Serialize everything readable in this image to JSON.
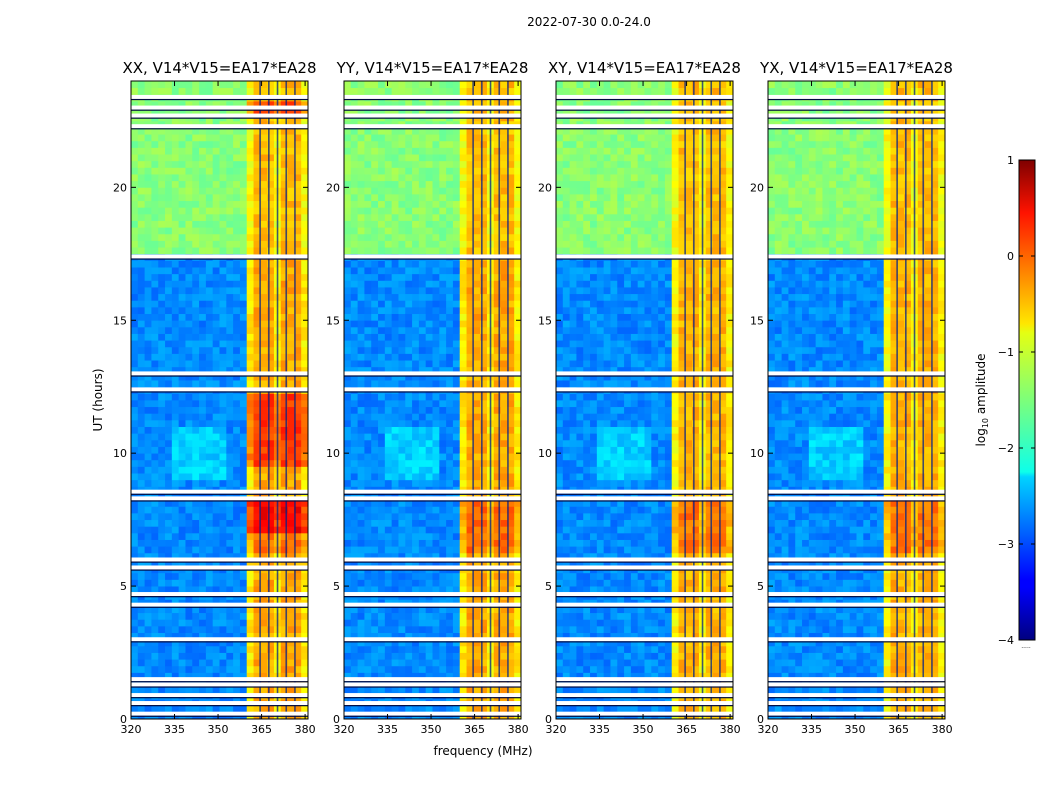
{
  "figure": {
    "suptitle": "2022-07-30 0.0-24.0",
    "xlabel": "frequency (MHz)",
    "ylabel": "UT (hours)"
  },
  "chart_data": {
    "type": "heatmap",
    "x_range_mhz": [
      320,
      381
    ],
    "y_range_hours": [
      0,
      24
    ],
    "x_ticks": [
      320,
      335,
      350,
      365,
      380
    ],
    "y_ticks": [
      0,
      5,
      10,
      15,
      20
    ],
    "panels": [
      {
        "title": "XX, V14*V15=EA17*EA28",
        "ylabel_shown": true
      },
      {
        "title": "YY, V14*V15=EA17*EA28",
        "ylabel_shown": false
      },
      {
        "title": "XY, V14*V15=EA17*EA28",
        "ylabel_shown": false
      },
      {
        "title": "YX, V14*V15=EA17*EA28",
        "ylabel_shown": false
      }
    ],
    "rfi_band_mhz": [
      361,
      380
    ],
    "rfi_bright_columns_mhz": [
      363,
      366,
      369,
      372,
      375,
      378
    ],
    "quiet_block_hours": [
      17.6,
      24
    ],
    "flagged_rows_hours": [
      0.2,
      0.6,
      0.9,
      1.3,
      1.5,
      3.0,
      4.3,
      4.7,
      5.7,
      6.0,
      8.3,
      8.55,
      12.4,
      13.0,
      17.4,
      22.3,
      22.7,
      23.0,
      23.4
    ],
    "colorbar": {
      "label": "log",
      "label_sub": "10",
      "label_suffix": " amplitude",
      "min": -4,
      "max": 1,
      "ticks": [
        1,
        0,
        -1,
        -2,
        -3,
        -4
      ],
      "tick_labels": [
        "1",
        "0",
        "−1",
        "−2",
        "−3",
        "−4"
      ],
      "colormap": "jet",
      "footnote": "....."
    }
  }
}
